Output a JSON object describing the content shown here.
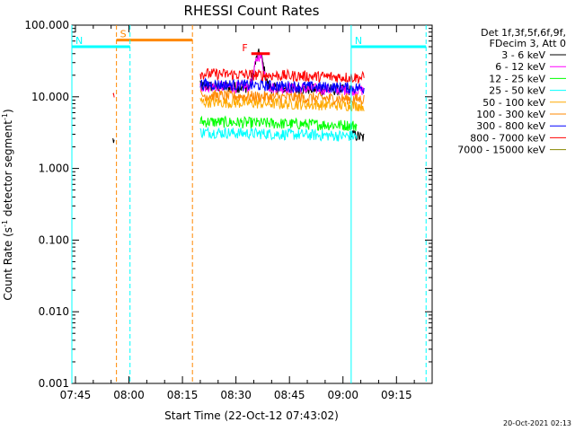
{
  "chart_data": {
    "type": "line",
    "title": "RHESSI Count Rates",
    "xlabel": "Start Time (22-Oct-12 07:43:02)",
    "ylabel_text": "Count Rate (s",
    "ylabel_sup1": "-1",
    "ylabel_mid": " detector segment",
    "ylabel_sup2": "-1",
    "ylabel_end": ")",
    "yscale": "log",
    "ylim": [
      0.001,
      100
    ],
    "xlim_minutes": [
      -16,
      85
    ],
    "x_ticks": [
      {
        "label": "07:45",
        "minutes": -15
      },
      {
        "label": "08:00",
        "minutes": 0
      },
      {
        "label": "08:15",
        "minutes": 15
      },
      {
        "label": "08:30",
        "minutes": 30
      },
      {
        "label": "08:45",
        "minutes": 45
      },
      {
        "label": "09:00",
        "minutes": 60
      },
      {
        "label": "09:15",
        "minutes": 75
      }
    ],
    "y_ticks": [
      {
        "label": "100.000",
        "value": 100
      },
      {
        "label": "10.000",
        "value": 10
      },
      {
        "label": "1.000",
        "value": 1
      },
      {
        "label": "0.100",
        "value": 0.1
      },
      {
        "label": "0.010",
        "value": 0.01
      },
      {
        "label": "0.001",
        "value": 0.001
      }
    ],
    "legend_header": [
      "Det 1f,3f,5f,6f,9f,",
      "FDecim 3, Att 0"
    ],
    "series": [
      {
        "name": "3 - 6 keV",
        "color": "#000000"
      },
      {
        "name": "6 - 12 keV",
        "color": "#ff00ff"
      },
      {
        "name": "12 - 25 keV",
        "color": "#00ff00"
      },
      {
        "name": "25 - 50 keV",
        "color": "#00ffff"
      },
      {
        "name": "50 - 100 keV",
        "color": "#ffaa00"
      },
      {
        "name": "100 - 300 keV",
        "color": "#ff8800"
      },
      {
        "name": "300 - 800 keV",
        "color": "#0000ff"
      },
      {
        "name": "800 - 7000 keV",
        "color": "#ff0000"
      },
      {
        "name": "7000 - 15000 keV",
        "color": "#888800"
      }
    ],
    "series_approx_levels": [
      {
        "name": "3 - 6 keV",
        "segments": [
          {
            "start": -4.5,
            "end": -4,
            "level": 2.5
          },
          {
            "start": 20,
            "end": 62,
            "level": 14,
            "peak_at": 36.5,
            "peak": 40
          },
          {
            "start": 62,
            "end": 66,
            "level": 3
          }
        ]
      },
      {
        "name": "6 - 12 keV",
        "segments": [
          {
            "start": 20,
            "end": 66,
            "level": 14,
            "peak_at": 36.5,
            "peak": 38
          }
        ]
      },
      {
        "name": "12 - 25 keV",
        "segments": [
          {
            "start": 20,
            "end": 64,
            "level": 4.5
          }
        ]
      },
      {
        "name": "25 - 50 keV",
        "segments": [
          {
            "start": 20,
            "end": 64,
            "level": 3.2
          }
        ]
      },
      {
        "name": "50 - 100 keV",
        "segments": [
          {
            "start": 20,
            "end": 66,
            "level": 8.5
          }
        ]
      },
      {
        "name": "100 - 300 keV",
        "segments": [
          {
            "start": 20,
            "end": 66,
            "level": 10.5
          }
        ]
      },
      {
        "name": "300 - 800 keV",
        "segments": [
          {
            "start": 20,
            "end": 66,
            "level": 15
          }
        ]
      },
      {
        "name": "800 - 7000 keV",
        "segments": [
          {
            "start": -4.5,
            "end": -4,
            "level": 12
          },
          {
            "start": 20,
            "end": 66,
            "level": 21
          }
        ]
      }
    ],
    "annotations": [
      {
        "label": "S",
        "color": "#ff8800",
        "start": -3.5,
        "end": 17.8,
        "level": 62,
        "type": "saa"
      },
      {
        "label": "N",
        "color": "#00ffff",
        "start": -16,
        "end": 0.3,
        "level": 50,
        "type": "night"
      },
      {
        "label": "N",
        "color": "#00ffff",
        "start": 62.3,
        "end": 83.3,
        "level": 50,
        "type": "night"
      },
      {
        "label": "F",
        "color": "#ff0000",
        "start": 34.3,
        "end": 39.5,
        "level": 40,
        "type": "flare"
      }
    ],
    "grid": false,
    "legend_position": "right"
  },
  "timestamp": "20-Oct-2021 02:13"
}
